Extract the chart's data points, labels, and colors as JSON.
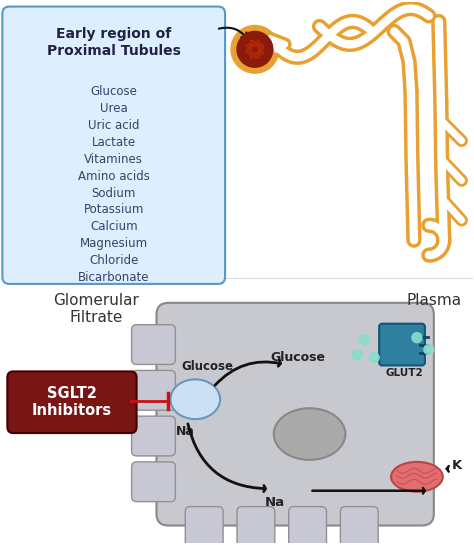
{
  "bg_color": "#ffffff",
  "box_bg": "#ddeeff",
  "box_edge": "#5599cc",
  "box_title": "Early region of\nProximal Tubules",
  "box_items": [
    "Glucose",
    "Urea",
    "Uric acid",
    "Lactate",
    "Vitamines",
    "Amino acids",
    "Sodium",
    "Potassium",
    "Calcium",
    "Magnesium",
    "Chloride",
    "Bicarbonate"
  ],
  "box_title_color": "#222244",
  "box_item_color": "#334466",
  "cell_bg": "#c8c8cf",
  "cell_edge": "#888888",
  "glut2_color": "#2e7fa0",
  "sglt2_box_bg": "#7a1515",
  "sglt2_box_text": "SGLT2\nInhibitors",
  "sglt2_text_color": "#ffffff",
  "label_glomerular": "Glomerular\nFiltrate",
  "label_plasma": "Plasma",
  "label_glucose_top": "Glucose",
  "label_glut2": "GLUT2",
  "label_na_left": "Na",
  "label_na_bottom": "Na",
  "label_k": "K",
  "label_glucose_mid": "Glucose",
  "arrow_color": "#111111",
  "inhibitor_arrow_color": "#cc1111",
  "bubble_color": "#88ddcc",
  "tubule_color": "#e8a030",
  "tubule_inner": "#ffffff",
  "glom_outer": "#e8a030",
  "glom_inner": "#8b1a0a"
}
